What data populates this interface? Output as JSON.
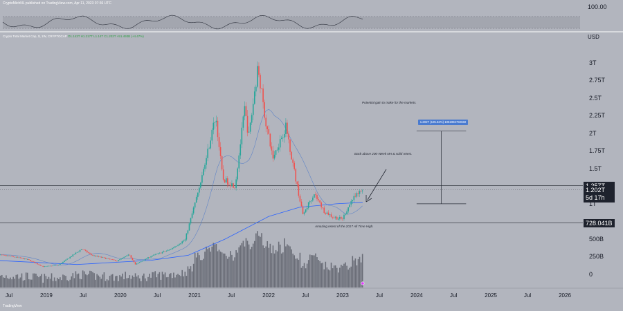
{
  "header": {
    "publisher": "CryptoMichNL published on TradingView.com, Apr 11, 2023 07:36 UTC"
  },
  "symbol": {
    "name": "Crypto Total Market Cap, $, 1W, CRYPTOCAP",
    "ohlc": "O1.143T H1.217T L1.14T C1.202T +51.493B (+4.47%)"
  },
  "annotations": {
    "potential": "Potential gain to make for the markets.",
    "back_above": "Back above 200-Week MA & solid retest.",
    "amazing": "Amazing retest of the 2017 All Time High.",
    "measure": "1.202T (105.62%) 1051982792660"
  },
  "price_tags": {
    "resistance": "1.257T",
    "current": "1.202T",
    "countdown": "5d 17h",
    "support": "728.041B"
  },
  "rsi_panel": {
    "axis_label": "100.00"
  },
  "footer": {
    "logo": "TradingView"
  },
  "colors": {
    "background": "#b2b5be",
    "up_candle": "#26a69a",
    "down_candle": "#ef5350",
    "ma_line": "#2962ff",
    "volume": "#5d606b"
  },
  "chart_data": {
    "type": "candlestick",
    "currency": "USD",
    "y_unit": "trillion USD",
    "ylim": [
      0,
      3.3
    ],
    "y_ticks": [
      {
        "value": 3.0,
        "label": "3T"
      },
      {
        "value": 2.75,
        "label": "2.75T"
      },
      {
        "value": 2.5,
        "label": "2.5T"
      },
      {
        "value": 2.25,
        "label": "2.25T"
      },
      {
        "value": 2.0,
        "label": "2T"
      },
      {
        "value": 1.75,
        "label": "1.75T"
      },
      {
        "value": 1.5,
        "label": "1.5T"
      },
      {
        "value": 1.0,
        "label": "1T"
      },
      {
        "value": 0.5,
        "label": "500B"
      },
      {
        "value": 0.25,
        "label": "250B"
      },
      {
        "value": 0.0,
        "label": "0"
      }
    ],
    "x_ticks": [
      {
        "date": "2018-07-01",
        "label": "Jul"
      },
      {
        "date": "2019-01-01",
        "label": "2019"
      },
      {
        "date": "2019-07-01",
        "label": "Jul"
      },
      {
        "date": "2020-01-01",
        "label": "2020"
      },
      {
        "date": "2020-07-01",
        "label": "Jul"
      },
      {
        "date": "2021-01-01",
        "label": "2021"
      },
      {
        "date": "2021-07-01",
        "label": "Jul"
      },
      {
        "date": "2022-01-01",
        "label": "2022"
      },
      {
        "date": "2022-07-01",
        "label": "Jul"
      },
      {
        "date": "2023-01-01",
        "label": "2023"
      },
      {
        "date": "2023-07-01",
        "label": "Jul"
      },
      {
        "date": "2024-01-01",
        "label": "2024"
      },
      {
        "date": "2024-07-01",
        "label": "Jul"
      },
      {
        "date": "2025-01-01",
        "label": "2025"
      },
      {
        "date": "2025-07-01",
        "label": "Jul"
      },
      {
        "date": "2026-01-01",
        "label": "2026"
      }
    ],
    "price_path": [
      {
        "date": "2018-04-15",
        "value": 0.28
      },
      {
        "date": "2018-07-01",
        "value": 0.26
      },
      {
        "date": "2018-10-01",
        "value": 0.21
      },
      {
        "date": "2018-12-15",
        "value": 0.11
      },
      {
        "date": "2019-03-01",
        "value": 0.13
      },
      {
        "date": "2019-06-25",
        "value": 0.36
      },
      {
        "date": "2019-08-15",
        "value": 0.27
      },
      {
        "date": "2019-12-15",
        "value": 0.19
      },
      {
        "date": "2020-02-15",
        "value": 0.28
      },
      {
        "date": "2020-03-15",
        "value": 0.14
      },
      {
        "date": "2020-06-01",
        "value": 0.26
      },
      {
        "date": "2020-09-01",
        "value": 0.35
      },
      {
        "date": "2020-11-15",
        "value": 0.49
      },
      {
        "date": "2021-01-07",
        "value": 1.05
      },
      {
        "date": "2021-02-20",
        "value": 1.55
      },
      {
        "date": "2021-04-15",
        "value": 2.25
      },
      {
        "date": "2021-05-20",
        "value": 1.35
      },
      {
        "date": "2021-07-20",
        "value": 1.25
      },
      {
        "date": "2021-09-05",
        "value": 2.35
      },
      {
        "date": "2021-09-25",
        "value": 1.95
      },
      {
        "date": "2021-11-10",
        "value": 2.95
      },
      {
        "date": "2021-12-15",
        "value": 2.2
      },
      {
        "date": "2022-01-22",
        "value": 1.65
      },
      {
        "date": "2022-03-28",
        "value": 2.1
      },
      {
        "date": "2022-05-15",
        "value": 1.35
      },
      {
        "date": "2022-06-18",
        "value": 0.85
      },
      {
        "date": "2022-08-14",
        "value": 1.15
      },
      {
        "date": "2022-10-01",
        "value": 0.9
      },
      {
        "date": "2022-11-10",
        "value": 0.82
      },
      {
        "date": "2022-12-30",
        "value": 0.78
      },
      {
        "date": "2023-02-15",
        "value": 1.05
      },
      {
        "date": "2023-04-10",
        "value": 1.202
      }
    ],
    "ma200_path": [
      {
        "date": "2018-04-15",
        "value": 0.2
      },
      {
        "date": "2019-06-01",
        "value": 0.14
      },
      {
        "date": "2020-06-01",
        "value": 0.2
      },
      {
        "date": "2020-12-01",
        "value": 0.27
      },
      {
        "date": "2021-06-01",
        "value": 0.5
      },
      {
        "date": "2022-01-01",
        "value": 0.82
      },
      {
        "date": "2022-06-01",
        "value": 0.95
      },
      {
        "date": "2022-12-01",
        "value": 1.0
      },
      {
        "date": "2023-04-10",
        "value": 1.02
      }
    ],
    "levels": {
      "resistance": 1.257,
      "current": 1.202,
      "support": 0.728
    },
    "measure": {
      "from": 1.0,
      "to": 2.03,
      "start_date": "2024-01-01",
      "end_date": "2024-09-01"
    }
  }
}
